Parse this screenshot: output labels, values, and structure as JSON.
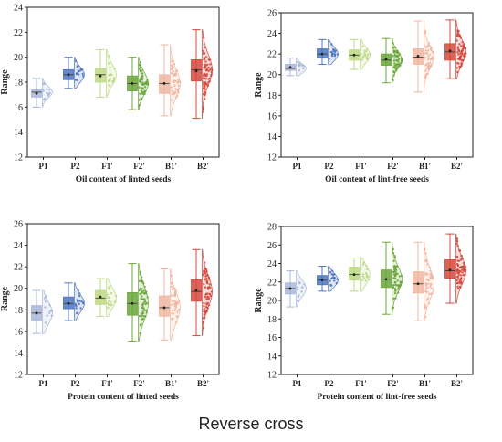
{
  "figure_caption": "Reverse cross",
  "chart_data": [
    {
      "type": "box",
      "xlabel": "Oil content of linted seeds",
      "ylabel": "Range",
      "ylim": [
        12,
        24
      ],
      "yticks": [
        12,
        14,
        16,
        18,
        20,
        22,
        24
      ],
      "categories": [
        "P1",
        "P2",
        "F1'",
        "F2'",
        "B1'",
        "B2'"
      ],
      "boxes": [
        {
          "name": "P1",
          "min": 16.0,
          "q1": 16.8,
          "median": 17.2,
          "mean": 17.1,
          "q3": 17.4,
          "max": 18.3
        },
        {
          "name": "P2",
          "min": 17.5,
          "q1": 18.2,
          "median": 18.6,
          "mean": 18.6,
          "q3": 19.0,
          "max": 20.0
        },
        {
          "name": "F1'",
          "min": 16.8,
          "q1": 18.0,
          "median": 18.6,
          "mean": 18.5,
          "q3": 19.1,
          "max": 20.6
        },
        {
          "name": "F2'",
          "min": 15.8,
          "q1": 17.3,
          "median": 17.9,
          "mean": 17.9,
          "q3": 18.5,
          "max": 20.0
        },
        {
          "name": "B1'",
          "min": 15.3,
          "q1": 17.1,
          "median": 17.9,
          "mean": 17.9,
          "q3": 18.6,
          "max": 21.0
        },
        {
          "name": "B2'",
          "min": 15.1,
          "q1": 18.1,
          "median": 19.0,
          "mean": 18.9,
          "q3": 19.8,
          "max": 22.2
        }
      ]
    },
    {
      "type": "box",
      "xlabel": "Oil content of lint-free seeds",
      "ylabel": "Range",
      "ylim": [
        12,
        26
      ],
      "yticks": [
        12,
        14,
        16,
        18,
        20,
        22,
        24,
        26
      ],
      "categories": [
        "P1",
        "P2",
        "F1'",
        "F2'",
        "B1'",
        "B2'"
      ],
      "boxes": [
        {
          "name": "P1",
          "min": 19.9,
          "q1": 20.4,
          "median": 20.6,
          "mean": 20.7,
          "q3": 21.0,
          "max": 21.6
        },
        {
          "name": "P2",
          "min": 21.0,
          "q1": 21.6,
          "median": 22.0,
          "mean": 22.0,
          "q3": 22.5,
          "max": 23.4
        },
        {
          "name": "F1'",
          "min": 20.5,
          "q1": 21.4,
          "median": 21.9,
          "mean": 21.9,
          "q3": 22.4,
          "max": 23.4
        },
        {
          "name": "F2'",
          "min": 19.2,
          "q1": 20.9,
          "median": 21.4,
          "mean": 21.5,
          "q3": 22.0,
          "max": 23.5
        },
        {
          "name": "B1'",
          "min": 18.3,
          "q1": 21.0,
          "median": 21.7,
          "mean": 21.8,
          "q3": 22.5,
          "max": 25.2
        },
        {
          "name": "B2'",
          "min": 19.6,
          "q1": 21.4,
          "median": 22.2,
          "mean": 22.3,
          "q3": 23.0,
          "max": 25.3
        }
      ]
    },
    {
      "type": "box",
      "xlabel": "Protein content of linted seeds",
      "ylabel": "Range",
      "ylim": [
        12,
        26
      ],
      "yticks": [
        12,
        14,
        16,
        18,
        20,
        22,
        24,
        26
      ],
      "categories": [
        "P1",
        "P2",
        "F1'",
        "F2'",
        "B1'",
        "B2'"
      ],
      "boxes": [
        {
          "name": "P1",
          "min": 15.8,
          "q1": 17.0,
          "median": 17.7,
          "mean": 17.7,
          "q3": 18.4,
          "max": 19.8
        },
        {
          "name": "P2",
          "min": 17.0,
          "q1": 18.1,
          "median": 18.6,
          "mean": 18.6,
          "q3": 19.2,
          "max": 20.5
        },
        {
          "name": "F1'",
          "min": 17.4,
          "q1": 18.5,
          "median": 19.1,
          "mean": 19.2,
          "q3": 19.8,
          "max": 20.9
        },
        {
          "name": "F2'",
          "min": 15.1,
          "q1": 17.5,
          "median": 18.6,
          "mean": 18.6,
          "q3": 19.6,
          "max": 22.3
        },
        {
          "name": "B1'",
          "min": 15.2,
          "q1": 17.4,
          "median": 18.2,
          "mean": 18.2,
          "q3": 19.3,
          "max": 21.8
        },
        {
          "name": "B2'",
          "min": 15.6,
          "q1": 18.8,
          "median": 19.7,
          "mean": 19.8,
          "q3": 20.8,
          "max": 23.6
        }
      ]
    },
    {
      "type": "box",
      "xlabel": "Protein content of lint-free seeds",
      "ylabel": "Range",
      "ylim": [
        12,
        28
      ],
      "yticks": [
        12,
        14,
        16,
        18,
        20,
        22,
        24,
        26,
        28
      ],
      "categories": [
        "P1",
        "P2",
        "F1'",
        "F2'",
        "B1'",
        "B2'"
      ],
      "boxes": [
        {
          "name": "P1",
          "min": 19.3,
          "q1": 20.7,
          "median": 21.3,
          "mean": 21.3,
          "q3": 21.9,
          "max": 23.2
        },
        {
          "name": "P2",
          "min": 21.0,
          "q1": 21.7,
          "median": 22.2,
          "mean": 22.2,
          "q3": 22.7,
          "max": 23.7
        },
        {
          "name": "F1'",
          "min": 21.0,
          "q1": 22.2,
          "median": 22.8,
          "mean": 22.8,
          "q3": 23.6,
          "max": 24.6
        },
        {
          "name": "F2'",
          "min": 18.5,
          "q1": 21.4,
          "median": 22.3,
          "mean": 22.3,
          "q3": 23.3,
          "max": 26.3
        },
        {
          "name": "B1'",
          "min": 17.8,
          "q1": 20.8,
          "median": 21.8,
          "mean": 21.8,
          "q3": 23.1,
          "max": 26.3
        },
        {
          "name": "B2'",
          "min": 19.7,
          "q1": 22.4,
          "median": 23.2,
          "mean": 23.3,
          "q3": 24.4,
          "max": 27.2
        }
      ]
    }
  ],
  "colors": {
    "P1": "#a9b7d7",
    "P2": "#4c74c0",
    "F1'": "#bcd983",
    "F2'": "#6aa63a",
    "B1'": "#efb7a1",
    "B2'": "#d5493d"
  }
}
